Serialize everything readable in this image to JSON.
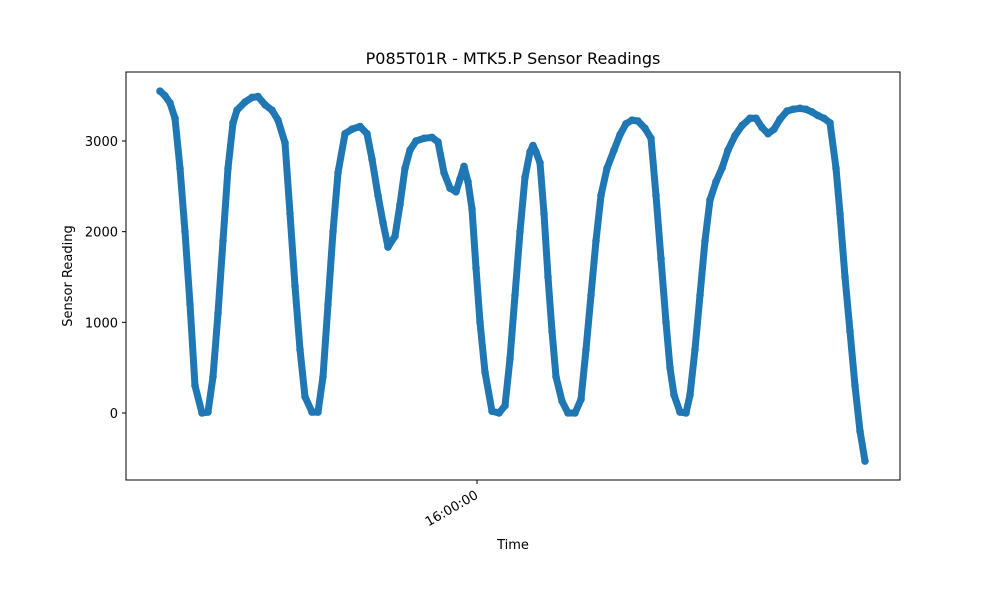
{
  "chart_data": {
    "type": "scatter",
    "title": "P085T01R - MTK5.P Sensor Readings",
    "x_label": "Time",
    "y_label": "Sensor Reading",
    "color": "#1f77b4",
    "grid": false,
    "xlim": [
      "15:54:09",
      "16:07:03"
    ],
    "xticks": [
      "16:00:00"
    ],
    "ylim": [
      -739,
      3761
    ],
    "yticks": [
      0,
      1000,
      2000,
      3000
    ],
    "x": [
      "15:54:43",
      "15:54:48",
      "15:54:53",
      "15:54:58",
      "15:55:03",
      "15:55:08",
      "15:55:13",
      "15:55:18",
      "15:55:25",
      "15:55:31",
      "15:55:36",
      "15:55:41",
      "15:55:46",
      "15:55:51",
      "15:55:56",
      "15:56:00",
      "15:56:08",
      "15:56:15",
      "15:56:21",
      "15:56:28",
      "15:56:35",
      "15:56:41",
      "15:56:48",
      "15:56:53",
      "15:56:58",
      "15:57:03",
      "15:57:08",
      "15:57:15",
      "15:57:21",
      "15:57:26",
      "15:57:31",
      "15:57:36",
      "15:57:41",
      "15:57:48",
      "15:57:55",
      "15:58:03",
      "15:58:10",
      "15:58:15",
      "15:58:21",
      "15:58:26",
      "15:58:31",
      "15:58:38",
      "15:58:43",
      "15:58:48",
      "15:58:53",
      "15:58:59",
      "15:59:07",
      "15:59:15",
      "15:59:21",
      "15:59:27",
      "15:59:33",
      "15:59:39",
      "15:59:43",
      "15:59:47",
      "15:59:51",
      "15:59:55",
      "15:59:59",
      "16:00:03",
      "16:00:08",
      "16:00:15",
      "16:00:22",
      "16:00:28",
      "16:00:33",
      "16:00:38",
      "16:00:43",
      "16:00:48",
      "16:00:53",
      "16:00:56",
      "16:00:59",
      "16:01:03",
      "16:01:07",
      "16:01:11",
      "16:01:15",
      "16:01:19",
      "16:01:25",
      "16:01:31",
      "16:01:38",
      "16:01:44",
      "16:01:49",
      "16:01:54",
      "16:01:59",
      "16:02:04",
      "16:02:10",
      "16:02:17",
      "16:02:23",
      "16:02:29",
      "16:02:35",
      "16:02:41",
      "16:02:48",
      "16:02:54",
      "16:02:59",
      "16:03:04",
      "16:03:09",
      "16:03:13",
      "16:03:17",
      "16:03:23",
      "16:03:29",
      "16:03:33",
      "16:03:38",
      "16:03:43",
      "16:03:48",
      "16:03:53",
      "16:03:59",
      "16:04:05",
      "16:04:11",
      "16:04:18",
      "16:04:25",
      "16:04:33",
      "16:04:39",
      "16:04:45",
      "16:04:51",
      "16:04:57",
      "16:05:03",
      "16:05:10",
      "16:05:16",
      "16:05:23",
      "16:05:29",
      "16:05:35",
      "16:05:41",
      "16:05:47",
      "16:05:53",
      "16:05:59",
      "16:06:03",
      "16:06:08",
      "16:06:13",
      "16:06:18",
      "16:06:23",
      "16:06:28"
    ],
    "values": [
      3550,
      3500,
      3420,
      3250,
      2700,
      2000,
      1200,
      300,
      0,
      10,
      400,
      1100,
      1900,
      2700,
      3200,
      3340,
      3430,
      3480,
      3490,
      3400,
      3340,
      3230,
      2980,
      2200,
      1400,
      700,
      180,
      10,
      10,
      400,
      1200,
      2000,
      2650,
      3080,
      3130,
      3160,
      3080,
      2800,
      2400,
      2100,
      1830,
      1950,
      2300,
      2700,
      2900,
      3000,
      3030,
      3040,
      2990,
      2650,
      2480,
      2440,
      2580,
      2720,
      2550,
      2250,
      1600,
      1000,
      450,
      20,
      0,
      80,
      600,
      1300,
      2000,
      2600,
      2880,
      2950,
      2880,
      2760,
      2200,
      1500,
      900,
      400,
      130,
      0,
      0,
      150,
      700,
      1300,
      1900,
      2400,
      2700,
      2900,
      3070,
      3190,
      3230,
      3220,
      3140,
      3030,
      2400,
      1700,
      1000,
      500,
      200,
      10,
      0,
      200,
      700,
      1300,
      1900,
      2350,
      2550,
      2700,
      2900,
      3060,
      3170,
      3250,
      3250,
      3150,
      3080,
      3130,
      3240,
      3330,
      3350,
      3360,
      3350,
      3320,
      3280,
      3250,
      3200,
      2700,
      2200,
      1500,
      900,
      300,
      -200,
      -530
    ]
  }
}
